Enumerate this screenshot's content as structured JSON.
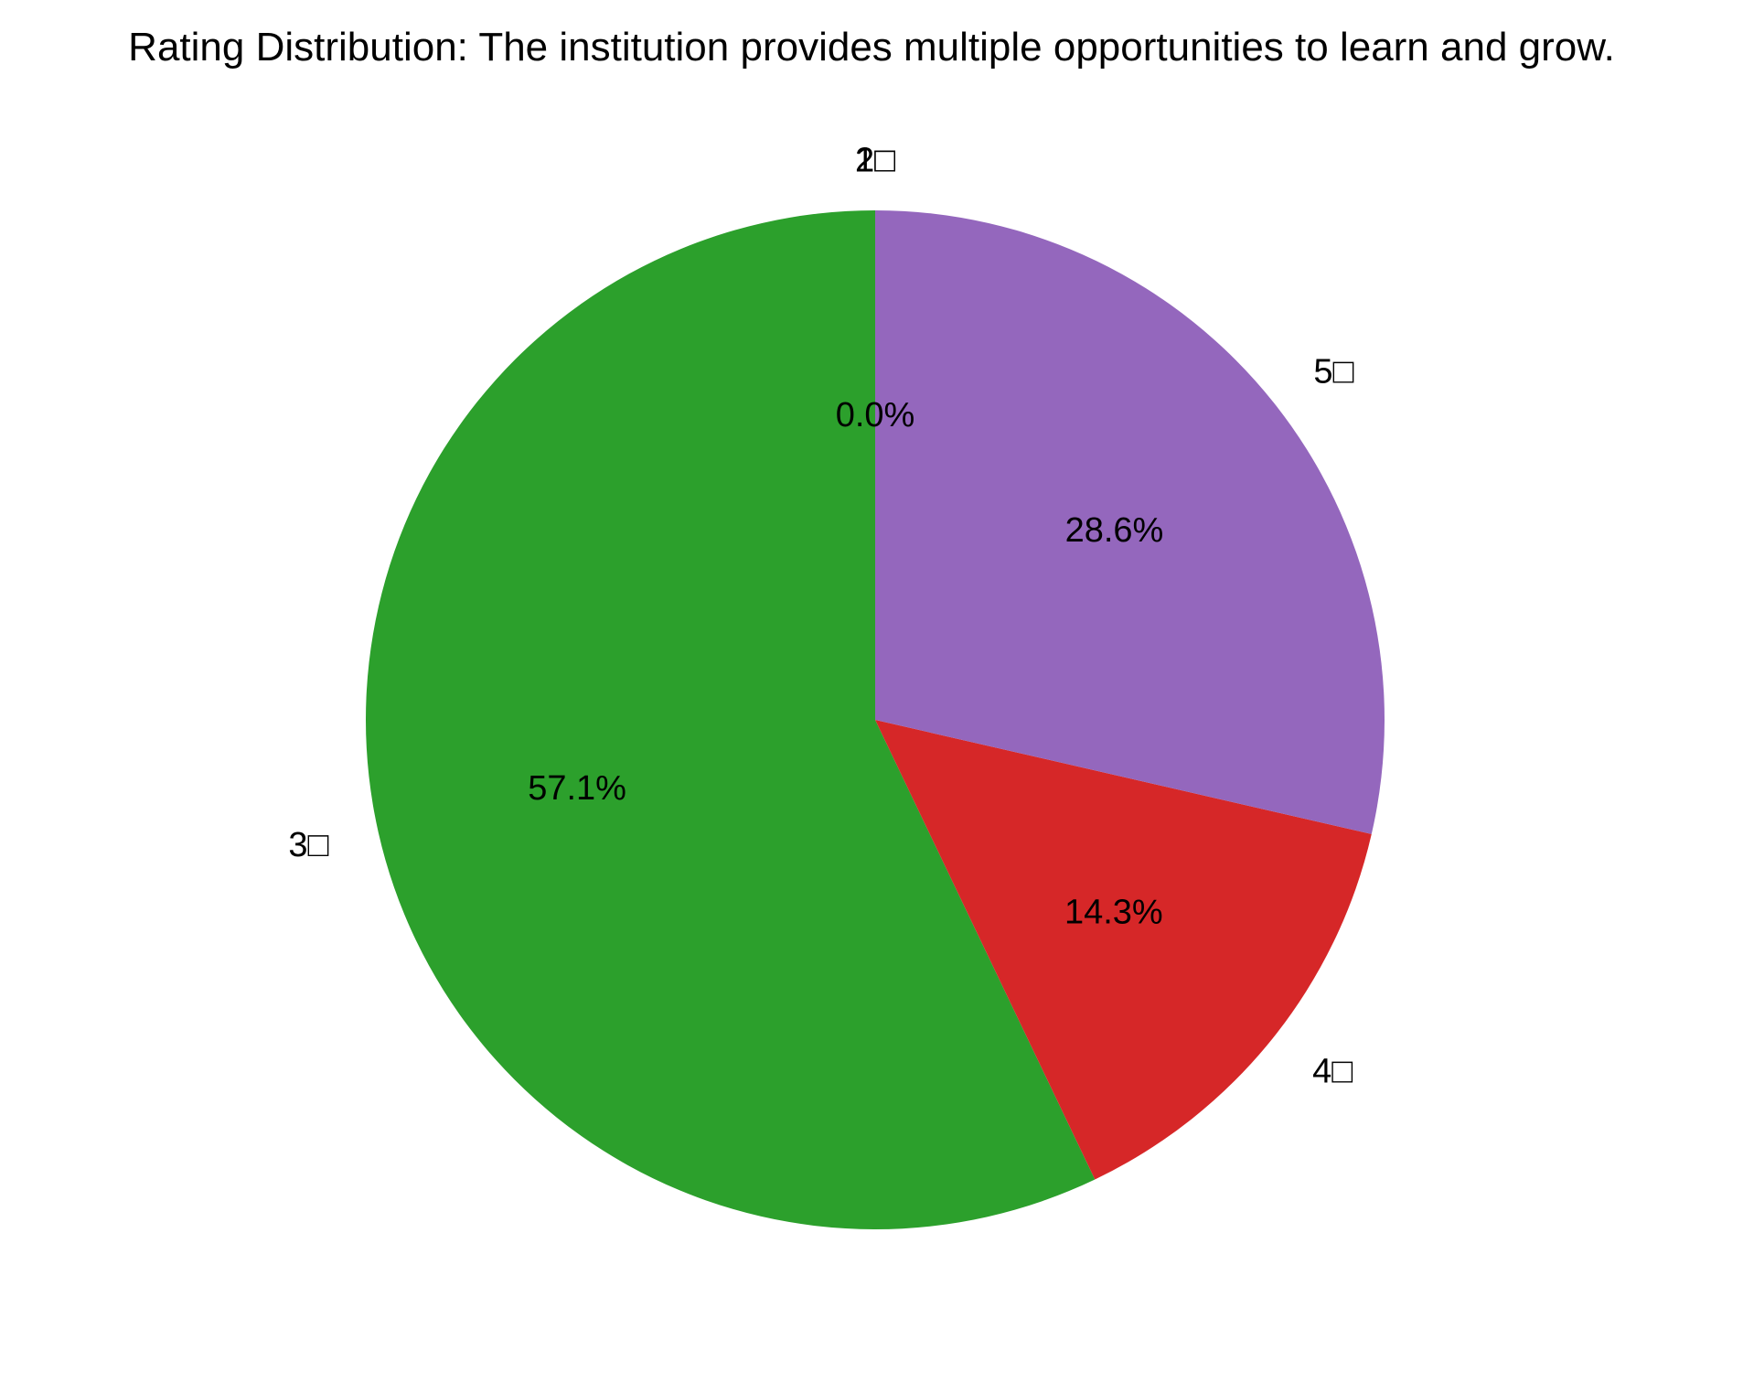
{
  "chart_data": {
    "type": "pie",
    "title": "Rating Distribution: The institution provides multiple opportunities to learn and grow.",
    "slices": [
      {
        "label": "1□",
        "value": 0.0,
        "pct_label": "",
        "color": "#1f77b4"
      },
      {
        "label": "2□",
        "value": 0.0,
        "pct_label": "0.0%",
        "color": "#ff7f0e"
      },
      {
        "label": "3□",
        "value": 57.1,
        "pct_label": "57.1%",
        "color": "#2ca02c"
      },
      {
        "label": "4□",
        "value": 14.3,
        "pct_label": "14.3%",
        "color": "#d62728"
      },
      {
        "label": "5□",
        "value": 28.6,
        "pct_label": "28.6%",
        "color": "#9467bd"
      }
    ],
    "start_angle_deg": 90,
    "direction": "counterclockwise"
  }
}
